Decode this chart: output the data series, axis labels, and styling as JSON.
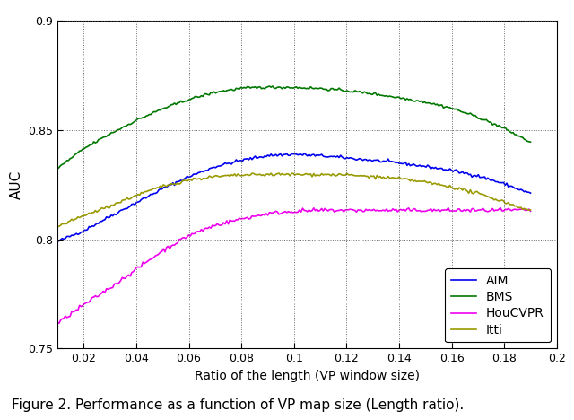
{
  "xlabel": "Ratio of the length (VP window size)",
  "ylabel": "AUC",
  "caption": "Figure 2. Performance as a function of VP map size (Length ratio).",
  "xlim": [
    0.01,
    0.2
  ],
  "ylim": [
    0.75,
    0.9
  ],
  "xticks": [
    0.02,
    0.04,
    0.06,
    0.08,
    0.1,
    0.12,
    0.14,
    0.16,
    0.18,
    0.2
  ],
  "xticklabels": [
    "0.02",
    "0.04",
    "0.06",
    "0.08",
    "0.1",
    "0.12",
    "0.14",
    "0.16",
    "0.18",
    "0.2"
  ],
  "yticks": [
    0.75,
    0.8,
    0.85,
    0.9
  ],
  "yticklabels": [
    "0.75",
    "0.8",
    "0.85",
    "0.9"
  ],
  "legend_labels": [
    "AIM",
    "BMS",
    "HouCVPR",
    "Itti"
  ],
  "legend_colors": [
    "#0000EE",
    "#007700",
    "#EE00EE",
    "#999900"
  ],
  "line_width": 1.2,
  "y_aim_pts": [
    [
      0.01,
      0.799
    ],
    [
      0.02,
      0.804
    ],
    [
      0.03,
      0.8105
    ],
    [
      0.04,
      0.8168
    ],
    [
      0.05,
      0.8232
    ],
    [
      0.06,
      0.8287
    ],
    [
      0.07,
      0.8333
    ],
    [
      0.08,
      0.8362
    ],
    [
      0.09,
      0.8384
    ],
    [
      0.1,
      0.839
    ],
    [
      0.11,
      0.8383
    ],
    [
      0.12,
      0.8373
    ],
    [
      0.13,
      0.8362
    ],
    [
      0.14,
      0.835
    ],
    [
      0.15,
      0.8334
    ],
    [
      0.16,
      0.8316
    ],
    [
      0.17,
      0.8291
    ],
    [
      0.18,
      0.8254
    ],
    [
      0.19,
      0.821
    ]
  ],
  "y_bms_pts": [
    [
      0.01,
      0.8325
    ],
    [
      0.02,
      0.8415
    ],
    [
      0.03,
      0.8483
    ],
    [
      0.04,
      0.8545
    ],
    [
      0.05,
      0.8598
    ],
    [
      0.06,
      0.8641
    ],
    [
      0.07,
      0.8674
    ],
    [
      0.08,
      0.8692
    ],
    [
      0.09,
      0.8697
    ],
    [
      0.1,
      0.8696
    ],
    [
      0.11,
      0.8691
    ],
    [
      0.12,
      0.8681
    ],
    [
      0.13,
      0.8667
    ],
    [
      0.14,
      0.8649
    ],
    [
      0.15,
      0.8629
    ],
    [
      0.16,
      0.8601
    ],
    [
      0.17,
      0.856
    ],
    [
      0.18,
      0.8508
    ],
    [
      0.19,
      0.8445
    ]
  ],
  "y_hou_pts": [
    [
      0.01,
      0.7615
    ],
    [
      0.02,
      0.77
    ],
    [
      0.03,
      0.7778
    ],
    [
      0.04,
      0.7863
    ],
    [
      0.05,
      0.7948
    ],
    [
      0.06,
      0.8018
    ],
    [
      0.07,
      0.8065
    ],
    [
      0.08,
      0.8094
    ],
    [
      0.09,
      0.8118
    ],
    [
      0.1,
      0.8129
    ],
    [
      0.11,
      0.8133
    ],
    [
      0.12,
      0.8133
    ],
    [
      0.13,
      0.8133
    ],
    [
      0.14,
      0.8133
    ],
    [
      0.15,
      0.8133
    ],
    [
      0.16,
      0.8133
    ],
    [
      0.17,
      0.8133
    ],
    [
      0.18,
      0.8133
    ],
    [
      0.19,
      0.8133
    ]
  ],
  "y_itti_pts": [
    [
      0.01,
      0.8058
    ],
    [
      0.02,
      0.8108
    ],
    [
      0.03,
      0.8153
    ],
    [
      0.04,
      0.8202
    ],
    [
      0.05,
      0.8243
    ],
    [
      0.06,
      0.8272
    ],
    [
      0.07,
      0.8287
    ],
    [
      0.08,
      0.8294
    ],
    [
      0.09,
      0.8297
    ],
    [
      0.1,
      0.8297
    ],
    [
      0.11,
      0.8297
    ],
    [
      0.12,
      0.8295
    ],
    [
      0.13,
      0.8287
    ],
    [
      0.14,
      0.8278
    ],
    [
      0.15,
      0.8262
    ],
    [
      0.16,
      0.824
    ],
    [
      0.17,
      0.821
    ],
    [
      0.18,
      0.8172
    ],
    [
      0.19,
      0.813
    ]
  ]
}
